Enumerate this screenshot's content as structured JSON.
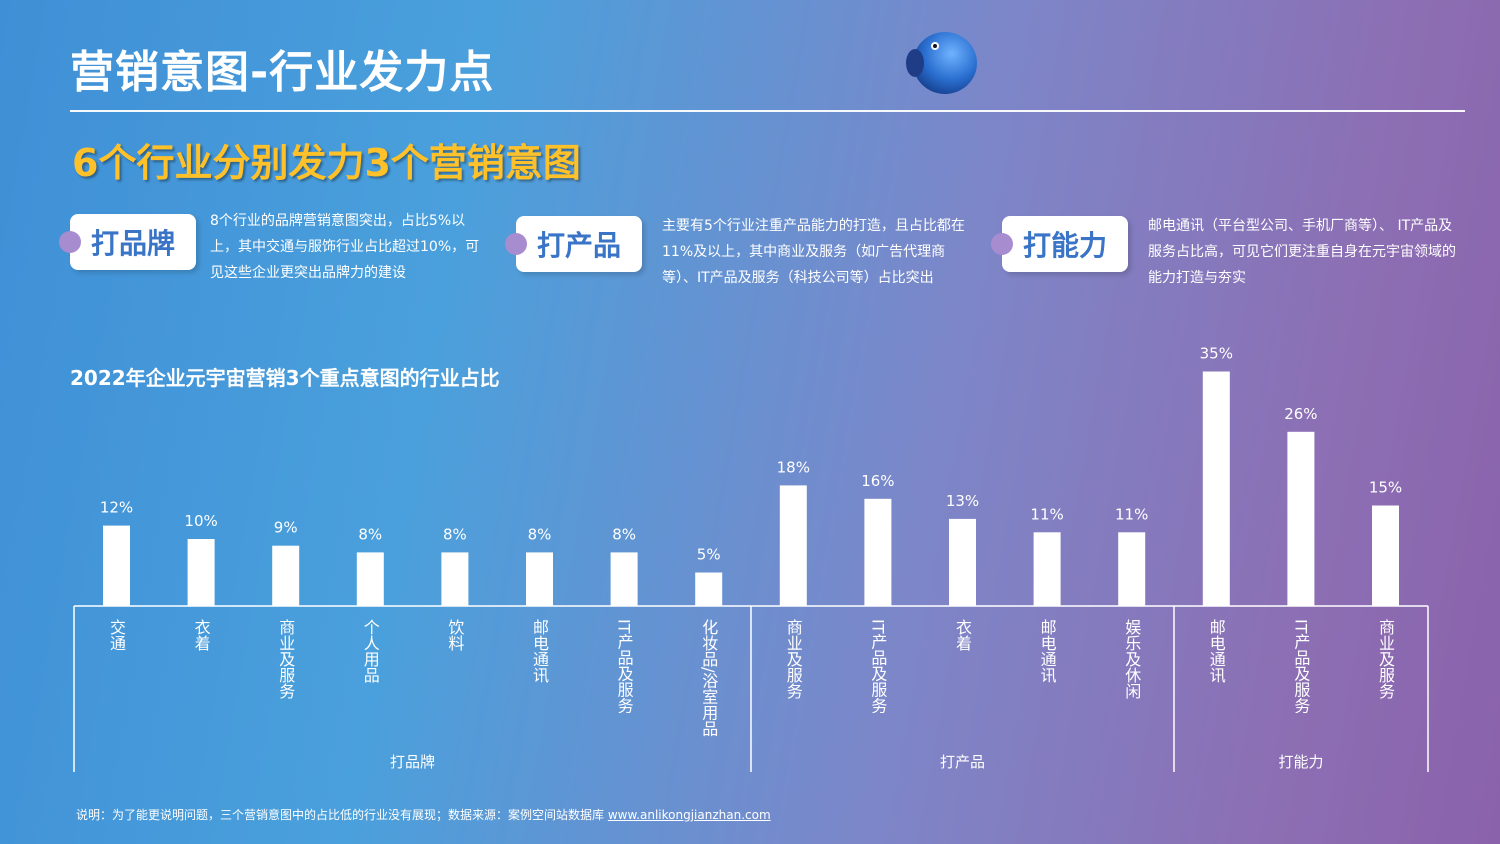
{
  "header": {
    "title": "营销意图-行业发力点"
  },
  "subtitle": "6个行业分别发力3个营销意图",
  "cards": [
    {
      "label": "打品牌",
      "text": "8个行业的品牌营销意图突出，占比5%以上，其中交通与服饰行业占比超过10%，可见这些企业更突出品牌力的建设"
    },
    {
      "label": "打产品",
      "text": "主要有5个行业注重产品能力的打造，且占比都在11%及以上，其中商业及服务（如广告代理商等）、IT产品及服务（科技公司等）占比突出"
    },
    {
      "label": "打能力",
      "text": "邮电通讯（平台型公司、手机厂商等）、 IT产品及服务占比高，可见它们更注重自身在元宇宙领域的能力打造与夯实"
    }
  ],
  "chart_title": "2022年企业元宇宙营销3个重点意图的行业占比",
  "chart_data": {
    "type": "bar",
    "title": "2022年企业元宇宙营销3个重点意图的行业占比",
    "unit": "%",
    "groups": [
      {
        "name": "打品牌",
        "categories": [
          "交通",
          "衣着",
          "商业及服务",
          "个人用品",
          "饮料",
          "邮电通讯",
          "IT产品及服务",
          "化妆品/浴室用品"
        ],
        "values": [
          12,
          10,
          9,
          8,
          8,
          8,
          8,
          5
        ]
      },
      {
        "name": "打产品",
        "categories": [
          "商业及服务",
          "IT产品及服务",
          "衣着",
          "邮电通讯",
          "娱乐及休闲"
        ],
        "values": [
          18,
          16,
          13,
          11,
          11
        ]
      },
      {
        "name": "打能力",
        "categories": [
          "邮电通讯",
          "IT产品及服务",
          "商业及服务"
        ],
        "values": [
          35,
          26,
          15
        ]
      }
    ],
    "bar_color": "#ffffff"
  },
  "footer": {
    "text": "说明：为了能更说明问题，三个营销意图中的占比低的行业没有展现；数据来源：案例空间站数据库 ",
    "link": "www.anlikongjianzhan.com"
  }
}
